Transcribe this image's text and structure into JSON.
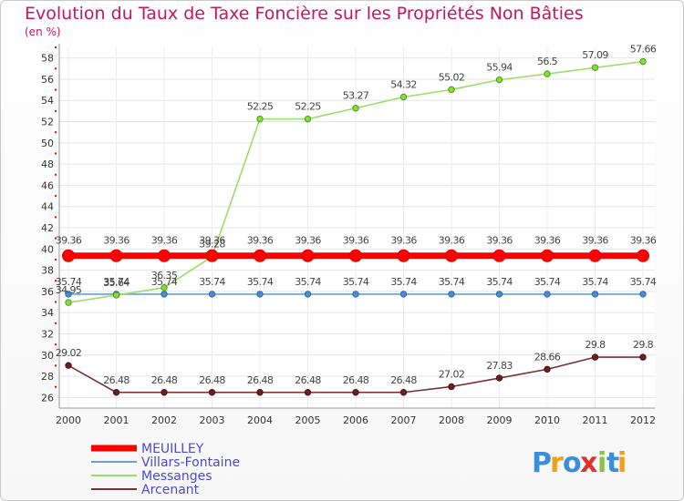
{
  "chart_data": {
    "type": "line",
    "title": "Evolution du Taux de Taxe Foncière sur les Propriétés Non Bâties",
    "unit_label": "(en %)",
    "x": [
      "2000",
      "2001",
      "2002",
      "2003",
      "2004",
      "2005",
      "2006",
      "2007",
      "2008",
      "2009",
      "2010",
      "2011",
      "2012"
    ],
    "ylim": [
      25,
      59
    ],
    "yticks": [
      26,
      28,
      30,
      32,
      34,
      36,
      38,
      40,
      42,
      44,
      46,
      48,
      50,
      52,
      54,
      56,
      58
    ],
    "series": [
      {
        "name": "MEUILLEY",
        "color": "#ff0000",
        "values": [
          39.36,
          39.36,
          39.36,
          39.36,
          39.36,
          39.36,
          39.36,
          39.36,
          39.36,
          39.36,
          39.36,
          39.36,
          39.36
        ],
        "labels": [
          "39.36",
          "39.36",
          "39.36",
          "39.36",
          "39.36",
          "39.36",
          "39.36",
          "39.36",
          "39.36",
          "39.36",
          "39.36",
          "39.36",
          "39.36"
        ]
      },
      {
        "name": "Villars-Fontaine",
        "color": "#6a9fcf",
        "values": [
          35.74,
          35.74,
          35.74,
          35.74,
          35.74,
          35.74,
          35.74,
          35.74,
          35.74,
          35.74,
          35.74,
          35.74,
          35.74
        ],
        "labels": [
          "35.74",
          "35.74",
          "35.74",
          "35.74",
          "35.74",
          "35.74",
          "35.74",
          "35.74",
          "35.74",
          "35.74",
          "35.74",
          "35.74",
          "35.74"
        ]
      },
      {
        "name": "Messanges",
        "color": "#99dd66",
        "values": [
          34.95,
          35.64,
          36.35,
          39.28,
          52.25,
          52.25,
          53.27,
          54.32,
          55.02,
          55.94,
          56.5,
          57.09,
          57.66
        ],
        "labels": [
          "34.95",
          "35.64",
          "36.35",
          "39.28",
          "52.25",
          "52.25",
          "53.27",
          "54.32",
          "55.02",
          "55.94",
          "56.5",
          "57.09",
          "57.66"
        ]
      },
      {
        "name": "Arcenant",
        "color": "#7a2e33",
        "values": [
          29.02,
          26.48,
          26.48,
          26.48,
          26.48,
          26.48,
          26.48,
          26.48,
          27.02,
          27.83,
          28.66,
          29.8,
          29.8
        ],
        "labels": [
          "29.02",
          "26.48",
          "26.48",
          "26.48",
          "26.48",
          "26.48",
          "26.48",
          "26.48",
          "27.02",
          "27.83",
          "28.66",
          "29.8",
          "29.8"
        ]
      }
    ],
    "legend_position": "bottom-left"
  },
  "logo_text": "Proxiti",
  "logo_letters": [
    "P",
    "r",
    "o",
    "x",
    "i",
    "t",
    "i"
  ]
}
